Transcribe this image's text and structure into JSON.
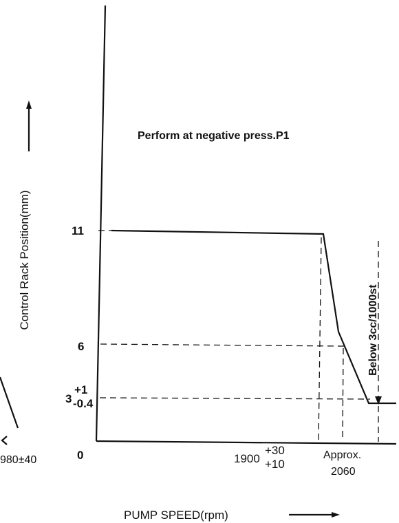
{
  "annotation": "Perform at negative press.P1",
  "y_axis_label": "Control Rack Position(mm)",
  "x_axis_label": "PUMP SPEED(rpm)",
  "y_labels": {
    "top": "11",
    "mid": "6",
    "low": "3",
    "low_plus": "+1",
    "low_minus": "-0.4",
    "zero": "0"
  },
  "x_labels": {
    "left_partial": "980±40",
    "first": "1900",
    "first_plus": "+30",
    "first_minus": "+10",
    "approx": "Approx.",
    "second": "2060"
  },
  "side_note": "Below 3cc/1000st"
}
